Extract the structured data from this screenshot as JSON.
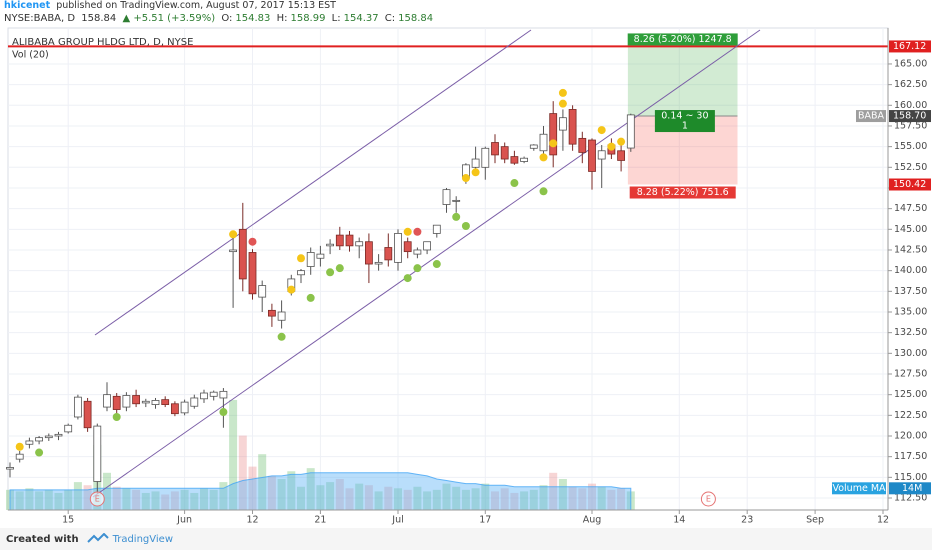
{
  "header": {
    "publisher": "hkicenet",
    "published_text": " published on TradingView.com, August 07, 2017 15:13 EST",
    "symbol": "NYSE:BABA, D",
    "last": "158.84",
    "change": "▲ +5.51 (+3.59%)",
    "ohlc": [
      {
        "key": "O:",
        "value": "154.83"
      },
      {
        "key": "H:",
        "value": "158.99"
      },
      {
        "key": "L:",
        "value": "154.37"
      },
      {
        "key": "C:",
        "value": "158.84"
      }
    ]
  },
  "footer": {
    "created_with": "Created with",
    "brand": "TradingView"
  },
  "chart_data": {
    "type": "candlestick",
    "title": "ALIBABA GROUP HLDG LTD, D, NYSE",
    "volume_legend": "Vol (20)",
    "up_color": "#ffffff",
    "down_color": "#d9534f",
    "grid": true,
    "xlim": [
      -0.206,
      90.515
    ],
    "ylim": [
      111.05,
      169.35
    ],
    "xticks": [
      {
        "value": 6,
        "label": "15"
      },
      {
        "value": 18,
        "label": "Jun"
      },
      {
        "value": 25,
        "label": "12"
      },
      {
        "value": 32,
        "label": "21"
      },
      {
        "value": 40,
        "label": "Jul"
      },
      {
        "value": 49,
        "label": "17"
      },
      {
        "value": 60,
        "label": "Aug"
      },
      {
        "value": 69,
        "label": "14"
      },
      {
        "value": 76,
        "label": "23"
      },
      {
        "value": 83,
        "label": "Sep"
      },
      {
        "value": 90,
        "label": "12"
      }
    ],
    "yticks": [
      {
        "value": 112.5,
        "label": "112.50"
      },
      {
        "value": 115,
        "label": "115.00"
      },
      {
        "value": 117.5,
        "label": "117.50"
      },
      {
        "value": 120,
        "label": "120.00"
      },
      {
        "value": 122.5,
        "label": "122.50"
      },
      {
        "value": 125,
        "label": "125.00"
      },
      {
        "value": 127.5,
        "label": "127.50"
      },
      {
        "value": 130,
        "label": "130.00"
      },
      {
        "value": 132.5,
        "label": "132.50"
      },
      {
        "value": 135,
        "label": "135.00"
      },
      {
        "value": 137.5,
        "label": "137.50"
      },
      {
        "value": 140,
        "label": "140.00"
      },
      {
        "value": 142.5,
        "label": "142.50"
      },
      {
        "value": 145,
        "label": "145.00"
      },
      {
        "value": 147.5,
        "label": "147.50"
      },
      {
        "value": 150,
        "label": "150.00"
      },
      {
        "value": 152.5,
        "label": "152.50"
      },
      {
        "value": 155,
        "label": "155.00"
      },
      {
        "value": 157.5,
        "label": "157.50"
      },
      {
        "value": 160,
        "label": "160.00"
      },
      {
        "value": 162.5,
        "label": "162.50"
      },
      {
        "value": 165,
        "label": "165.00"
      }
    ],
    "open": [
      116,
      117.2,
      119,
      119.4,
      119.8,
      120,
      120.5,
      122.3,
      124.2,
      114.5,
      123.5,
      124.8,
      123.5,
      124.9,
      124,
      123.8,
      124.4,
      123.9,
      122.8,
      123.6,
      124.5,
      124.8,
      124.6,
      142.3,
      145,
      142.2,
      136.8,
      135.2,
      134,
      137.5,
      139.5,
      140.5,
      141.5,
      143,
      144.3,
      144.3,
      143,
      143.5,
      140.8,
      142.8,
      141,
      143.5,
      142,
      142.5,
      144.5,
      148,
      148.5,
      151.2,
      152.5,
      152.5,
      155.5,
      155,
      153.8,
      153.2,
      154.8,
      154.5,
      159,
      157,
      159.5,
      156,
      155.8,
      153.5,
      155.2,
      154.5,
      154.83
    ],
    "high": [
      116.8,
      118.2,
      119.8,
      120,
      120.3,
      120.5,
      121.5,
      125,
      124.6,
      121.5,
      126.5,
      125.2,
      125.3,
      125.6,
      124.5,
      124.6,
      124.8,
      124.2,
      124.4,
      125,
      125.6,
      125.5,
      125.8,
      144.5,
      148.2,
      142.6,
      138.8,
      136,
      136.4,
      139.5,
      140.2,
      142.8,
      143,
      143.8,
      145.3,
      144.8,
      144,
      144.5,
      142,
      144.5,
      145,
      144,
      142.8,
      143.5,
      145.5,
      150,
      149,
      153,
      155,
      155,
      156.5,
      155.5,
      154.5,
      153.8,
      155.3,
      157.5,
      160.5,
      159.5,
      160,
      156.8,
      156,
      155.2,
      156,
      155.5,
      158.99
    ],
    "low": [
      115,
      116.8,
      118.5,
      119,
      119.4,
      119.5,
      120.3,
      122,
      120.5,
      113,
      123,
      122.6,
      123,
      123.5,
      123.5,
      123.3,
      123.5,
      122.4,
      122.5,
      123.3,
      124,
      124.3,
      121,
      135.5,
      137.5,
      136.5,
      135,
      133.2,
      133,
      137,
      138.5,
      139.5,
      140.5,
      142,
      142.5,
      142.3,
      141.5,
      138.5,
      140,
      140.5,
      140,
      141.5,
      141.5,
      142,
      144,
      147,
      147,
      150.5,
      151.5,
      151,
      153,
      153,
      152.8,
      153,
      154.5,
      154,
      152.5,
      154.5,
      154.5,
      153,
      149.8,
      150,
      153.5,
      152,
      154.37
    ],
    "close": [
      116.2,
      117.8,
      119.4,
      119.8,
      120,
      120.2,
      121.3,
      124.7,
      121,
      121.2,
      125,
      123.2,
      124.9,
      123.9,
      124.2,
      124.3,
      123.8,
      122.7,
      124.1,
      124.6,
      125.2,
      125.3,
      125.4,
      142.5,
      139,
      137.2,
      138.2,
      134.5,
      135,
      139,
      140,
      142.2,
      142,
      143.2,
      143,
      143,
      143.5,
      140.8,
      141,
      141.3,
      144.5,
      142.3,
      142.5,
      143.5,
      145.5,
      149.8,
      148.5,
      152.8,
      153.5,
      154.8,
      154,
      153.5,
      153,
      153.6,
      155.2,
      156.5,
      154,
      158.5,
      155.3,
      154.3,
      152,
      154.5,
      154.1,
      153.33,
      158.84
    ],
    "volume_ylim": [
      0,
      100
    ],
    "volume": [
      13,
      12,
      14,
      12,
      13,
      11,
      13,
      18,
      16,
      42,
      24,
      15,
      14,
      13,
      11,
      12,
      10,
      12,
      13,
      11,
      14,
      13,
      18,
      71,
      48,
      28,
      36,
      22,
      20,
      25,
      15,
      27,
      16,
      18,
      20,
      14,
      17,
      16,
      12,
      15,
      14,
      13,
      15,
      12,
      13,
      17,
      15,
      13,
      14,
      17,
      12,
      14,
      11,
      12,
      13,
      16,
      24,
      20,
      15,
      14,
      17,
      15,
      13,
      14,
      12
    ],
    "volume_ma": [
      13,
      13,
      13,
      13,
      13,
      13,
      13,
      13,
      13,
      14,
      14,
      14,
      14,
      14,
      14,
      14,
      14,
      14,
      14,
      14,
      14,
      14,
      14,
      17,
      19,
      20,
      21,
      22,
      22,
      23,
      23,
      24,
      24,
      24,
      24,
      24,
      24,
      24,
      24,
      24,
      24,
      24,
      23,
      22,
      20,
      19,
      18,
      17,
      17,
      16,
      16,
      16,
      15,
      15,
      15,
      15,
      15,
      15,
      15,
      15,
      15,
      15,
      15,
      14,
      14
    ],
    "volume_ma_tag": {
      "label": "Volume MA",
      "value_label": "14M"
    },
    "dots": [
      {
        "color": "#f5c518",
        "x": [
          1,
          23,
          29,
          30,
          41,
          47,
          48,
          55,
          56,
          57,
          57,
          61,
          62,
          63
        ],
        "values": [
          118.7,
          144.4,
          137.7,
          141.5,
          144.7,
          151.2,
          151.9,
          153.7,
          155.4,
          161.5,
          160.2,
          157,
          155,
          155.6
        ]
      },
      {
        "color": "#8bc34a",
        "x": [
          3,
          11,
          22,
          28,
          31,
          33,
          34,
          41,
          42,
          44,
          46,
          47,
          52,
          55
        ],
        "values": [
          118,
          122.3,
          122.9,
          132,
          136.7,
          139.8,
          140.3,
          139.1,
          140.3,
          140.8,
          146.5,
          145.4,
          150.6,
          149.6
        ]
      },
      {
        "color": "#e05555",
        "x": [
          25,
          42
        ],
        "values": [
          143.5,
          144.7
        ]
      }
    ],
    "earnings": {
      "label": "E",
      "x": [
        9,
        72
      ]
    },
    "price_labels": [
      {
        "value": 167.12,
        "label": "167.12",
        "color": "#e02020"
      },
      {
        "value": 158.7,
        "label": "158.70",
        "color": "#444444"
      },
      {
        "value": 150.42,
        "label": "150.42",
        "color": "#e02020"
      }
    ],
    "symbol_tag": "BABA",
    "position": {
      "target_label": "8.26 (5.20%) 1247.8",
      "entry_label": "0.14 ~ 30",
      "entry_qty": "1",
      "stop_label": "8.28 (5.22%) 751.6"
    }
  }
}
